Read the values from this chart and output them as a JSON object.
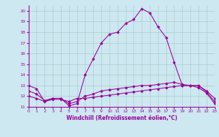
{
  "xlabel": "Windchill (Refroidissement éolien,°C)",
  "xlim": [
    0,
    23
  ],
  "ylim": [
    11,
    20.5
  ],
  "yticks": [
    11,
    12,
    13,
    14,
    15,
    16,
    17,
    18,
    19,
    20
  ],
  "xticks": [
    0,
    1,
    2,
    3,
    4,
    5,
    6,
    7,
    8,
    9,
    10,
    11,
    12,
    13,
    14,
    15,
    16,
    17,
    18,
    19,
    20,
    21,
    22,
    23
  ],
  "bg_color": "#cde8f0",
  "line_color": "#990099",
  "grid_color": "#aacccc",
  "series1": {
    "x": [
      0,
      1,
      2,
      3,
      4,
      5,
      6,
      7,
      8,
      9,
      10,
      11,
      12,
      13,
      14,
      15,
      16,
      17,
      18,
      19,
      20,
      21,
      22,
      23
    ],
    "y": [
      13.0,
      12.7,
      11.5,
      11.8,
      11.8,
      11.1,
      11.3,
      14.0,
      15.5,
      17.0,
      17.8,
      18.0,
      18.8,
      19.2,
      20.2,
      19.8,
      18.5,
      17.5,
      15.2,
      13.0,
      13.0,
      12.8,
      12.3,
      11.3
    ]
  },
  "series2": {
    "x": [
      0,
      1,
      2,
      3,
      4,
      5,
      6,
      7,
      8,
      9,
      10,
      11,
      12,
      13,
      14,
      15,
      16,
      17,
      18,
      19,
      20,
      21,
      22,
      23
    ],
    "y": [
      12.0,
      11.8,
      11.5,
      11.7,
      11.7,
      11.5,
      11.8,
      11.8,
      11.9,
      12.0,
      12.1,
      12.2,
      12.3,
      12.4,
      12.5,
      12.6,
      12.7,
      12.8,
      12.9,
      13.0,
      13.0,
      13.0,
      12.5,
      11.8
    ]
  },
  "series3": {
    "x": [
      0,
      1,
      2,
      3,
      4,
      5,
      6,
      7,
      8,
      9,
      10,
      11,
      12,
      13,
      14,
      15,
      16,
      17,
      18,
      19,
      20,
      21,
      22,
      23
    ],
    "y": [
      12.5,
      12.2,
      11.6,
      11.8,
      11.8,
      11.3,
      11.5,
      12.0,
      12.2,
      12.5,
      12.6,
      12.7,
      12.8,
      12.9,
      13.0,
      13.0,
      13.1,
      13.2,
      13.3,
      13.1,
      13.0,
      13.0,
      12.4,
      11.5
    ]
  },
  "figsize": [
    3.2,
    2.0
  ],
  "dpi": 100
}
